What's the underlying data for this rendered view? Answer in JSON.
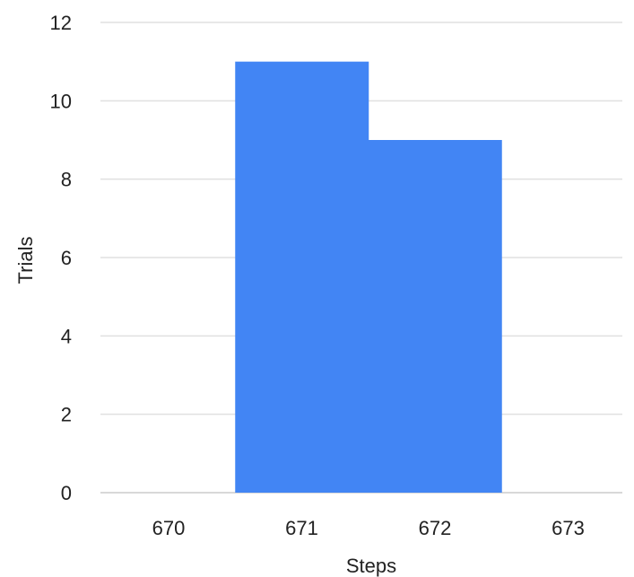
{
  "chart_data": {
    "type": "bar",
    "categories": [
      "670",
      "671",
      "672",
      "673"
    ],
    "values": [
      0,
      11,
      9,
      0
    ],
    "xlabel": "Steps",
    "ylabel": "Trials",
    "ylim": [
      0,
      12
    ],
    "yticks": [
      0,
      2,
      4,
      6,
      8,
      10,
      12
    ],
    "grid": true,
    "bar_gap": 0,
    "colors": {
      "bar": "#4285f4"
    }
  }
}
